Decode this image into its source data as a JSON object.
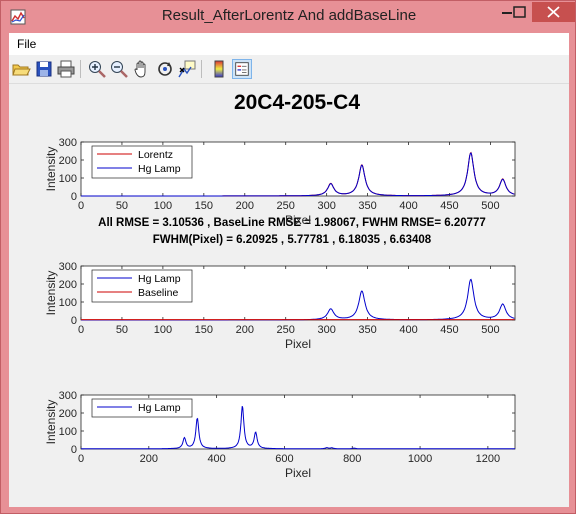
{
  "window": {
    "title": "Result_AfterLorentz And addBaseLine"
  },
  "menubar": {
    "items": [
      "File"
    ]
  },
  "toolbar": {
    "tools": [
      "open-icon",
      "save-icon",
      "print-icon",
      "zoom-in-icon",
      "zoom-out-icon",
      "pan-icon",
      "rotate-icon",
      "data-cursor-icon",
      "colorbar-icon",
      "legend-icon"
    ]
  },
  "figure": {
    "suptitle": "20C4-205-C4",
    "rmse_line": "All RMSE = 3.10536 , BaseLine RMSE = 1.98067, FWHM RMSE= 6.20777",
    "fwhm_line": "FWHM(Pixel) = 6.20925 , 5.77781 , 6.18035 , 6.63408"
  },
  "chart_data": [
    {
      "type": "line",
      "xlabel": "Pixel",
      "ylabel": "Intensity",
      "xlim": [
        0,
        530
      ],
      "ylim": [
        0,
        300
      ],
      "xticks": [
        0,
        50,
        100,
        150,
        200,
        250,
        300,
        350,
        400,
        450,
        500
      ],
      "yticks": [
        0,
        100,
        200,
        300
      ],
      "legend": "top-left",
      "series": [
        {
          "name": "Lorentz",
          "color": "#cc0000",
          "peaks": [
            [
              305,
              68
            ],
            [
              343,
              172
            ],
            [
              476,
              240
            ],
            [
              515,
              92
            ]
          ],
          "baseline": 0
        },
        {
          "name": "Hg Lamp",
          "color": "#0000cc",
          "peaks": [
            [
              305,
              66
            ],
            [
              343,
              170
            ],
            [
              476,
              238
            ],
            [
              515,
              90
            ]
          ],
          "baseline": 0
        }
      ]
    },
    {
      "type": "line",
      "xlabel": "Pixel",
      "ylabel": "Intensity",
      "xlim": [
        0,
        530
      ],
      "ylim": [
        0,
        300
      ],
      "xticks": [
        0,
        50,
        100,
        150,
        200,
        250,
        300,
        350,
        400,
        450,
        500
      ],
      "yticks": [
        0,
        100,
        200,
        300
      ],
      "legend": "top-left",
      "series": [
        {
          "name": "Hg Lamp",
          "color": "#0000cc",
          "peaks": [
            [
              305,
              60
            ],
            [
              343,
              160
            ],
            [
              476,
              225
            ],
            [
              515,
              86
            ]
          ],
          "baseline": 0
        },
        {
          "name": "Baseline",
          "color": "#cc0000",
          "peaks": [],
          "baseline": 2
        }
      ]
    },
    {
      "type": "line",
      "xlabel": "Pixel",
      "ylabel": "Intensity",
      "xlim": [
        0,
        1280
      ],
      "ylim": [
        0,
        300
      ],
      "xticks": [
        0,
        200,
        400,
        600,
        800,
        1000,
        1200
      ],
      "yticks": [
        0,
        100,
        200,
        300
      ],
      "legend": "top-left",
      "series": [
        {
          "name": "Hg Lamp",
          "color": "#0000cc",
          "peaks": [
            [
              305,
              60
            ],
            [
              343,
              170
            ],
            [
              476,
              238
            ],
            [
              515,
              90
            ],
            [
              725,
              6
            ],
            [
              740,
              5
            ],
            [
              805,
              4
            ]
          ],
          "baseline": 1
        }
      ]
    }
  ]
}
